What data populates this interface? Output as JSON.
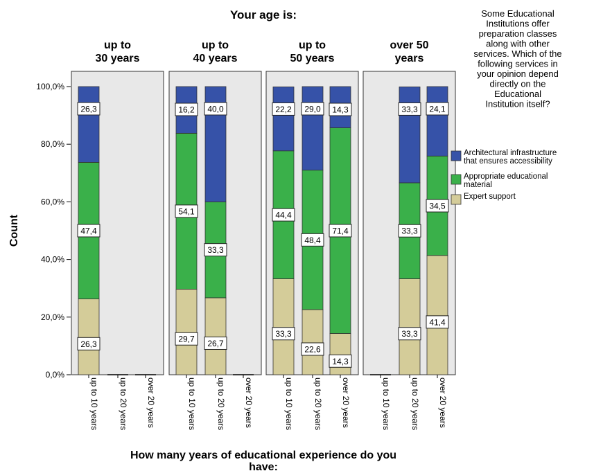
{
  "chart_data": {
    "type": "bar",
    "stacked": true,
    "title": "Your age is:",
    "xlabel": "How many years of educational experience do you have:",
    "ylabel": "Count",
    "ylim": [
      0,
      100
    ],
    "yticks": [
      "0,0%",
      "20,0%",
      "40,0%",
      "60,0%",
      "80,0%",
      "100,0%"
    ],
    "categories": [
      "up to 10 years",
      "up to 20 years",
      "over 20 years"
    ],
    "legend": {
      "title": "Some Educational Institutions offer preparation classes along with other services. Which of the following services in your opinion depend directly on the Educational Institution itself?",
      "placement": "right"
    },
    "colors": {
      "expert": "#d4cc99",
      "material": "#3ab04a",
      "infra": "#3652a8",
      "panel_bg": "#e8e8e8"
    },
    "series": [
      {
        "name": "Architectural infrastructure that ensures accessibility",
        "key": "infra"
      },
      {
        "name": "Appropriate educational material",
        "key": "material"
      },
      {
        "name": "Expert support",
        "key": "expert"
      }
    ],
    "panels": [
      {
        "title": "up to 30 years",
        "bars": [
          {
            "category": "up to 10 years",
            "expert": 26.3,
            "material": 47.4,
            "infra": 26.3,
            "labels": {
              "expert": "26,3",
              "material": "47,4",
              "infra": "26,3"
            }
          },
          null,
          null
        ]
      },
      {
        "title": "up to 40 years",
        "bars": [
          {
            "category": "up to 10 years",
            "expert": 29.7,
            "material": 54.1,
            "infra": 16.2,
            "labels": {
              "expert": "29,7",
              "material": "54,1",
              "infra": "16,2"
            }
          },
          {
            "category": "up to 20 years",
            "expert": 26.7,
            "material": 33.3,
            "infra": 40.0,
            "labels": {
              "expert": "26,7",
              "material": "33,3",
              "infra": "40,0"
            }
          },
          null
        ]
      },
      {
        "title": "up to 50 years",
        "bars": [
          {
            "category": "up to 10 years",
            "expert": 33.3,
            "material": 44.4,
            "infra": 22.2,
            "labels": {
              "expert": "33,3",
              "material": "44,4",
              "infra": "22,2"
            }
          },
          {
            "category": "up to 20 years",
            "expert": 22.6,
            "material": 48.4,
            "infra": 29.0,
            "labels": {
              "expert": "22,6",
              "material": "48,4",
              "infra": "29,0"
            }
          },
          {
            "category": "over 20 years",
            "expert": 14.3,
            "material": 71.4,
            "infra": 14.3,
            "labels": {
              "expert": "14,3",
              "material": "71,4",
              "infra": "14,3"
            }
          }
        ]
      },
      {
        "title": "over 50 years",
        "bars": [
          null,
          {
            "category": "up to 20 years",
            "expert": 33.3,
            "material": 33.3,
            "infra": 33.3,
            "labels": {
              "expert": "33,3",
              "material": "33,3",
              "infra": "33,3"
            }
          },
          {
            "category": "over 20 years",
            "expert": 41.4,
            "material": 34.5,
            "infra": 24.1,
            "labels": {
              "expert": "41,4",
              "material": "34,5",
              "infra": "24,1"
            }
          }
        ]
      }
    ]
  }
}
